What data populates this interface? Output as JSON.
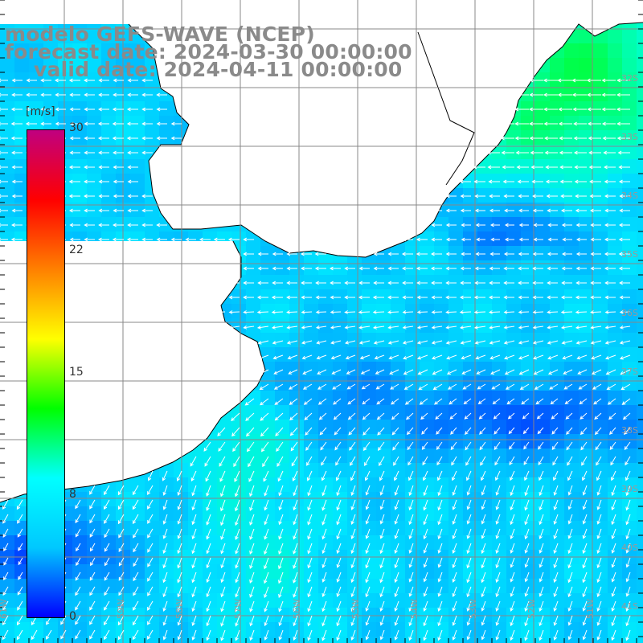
{
  "title": {
    "line1": "modelo GEFS-WAVE (NCEP)",
    "line2": "forecast date: 2024-03-30 00:00:00",
    "line3": "valid date: 2024-04-11 00:00:00"
  },
  "colorbar": {
    "units": "[m/s]",
    "ticks": [
      "30",
      "22",
      "15",
      "8",
      "0"
    ],
    "tick_values": [
      30,
      22,
      15,
      8,
      0
    ],
    "range": [
      0,
      30
    ],
    "colors": [
      "#0000ff",
      "#00c8ff",
      "#00ffff",
      "#00ff00",
      "#ffff00",
      "#ff8000",
      "#ff0000",
      "#c00080"
    ]
  },
  "map": {
    "lat_labels": [
      "32S",
      "33S",
      "34S",
      "35S",
      "36S",
      "37S",
      "38S",
      "39S",
      "40S",
      "41S"
    ],
    "lon_labels": [
      "61W",
      "60W",
      "59W",
      "58W",
      "57W",
      "56W",
      "55W",
      "54W",
      "53W",
      "52W",
      "51W"
    ],
    "colors": {
      "land": "#ffffff",
      "coastline": "#000000",
      "grid": "#888888",
      "arrows": "#ffffff",
      "labels": "#999999"
    }
  },
  "chart_data": {
    "type": "heatmap",
    "title": "modelo GEFS-WAVE (NCEP)",
    "variable_unit": "m/s",
    "value_range": [
      0,
      30
    ],
    "extent": {
      "lon": [
        -61.5,
        -50.5
      ],
      "lat": [
        -41.5,
        -31.0
      ]
    },
    "wind_direction": "easterly/south-easterly in the north, turning northerly in the south",
    "regions": [
      {
        "area": "north near coast",
        "speed_approx": 11
      },
      {
        "area": "central open ocean",
        "speed_approx": 6
      },
      {
        "area": "south-west",
        "speed_approx": 9
      },
      {
        "area": "far south-west shelf",
        "speed_approx": 4
      }
    ]
  }
}
